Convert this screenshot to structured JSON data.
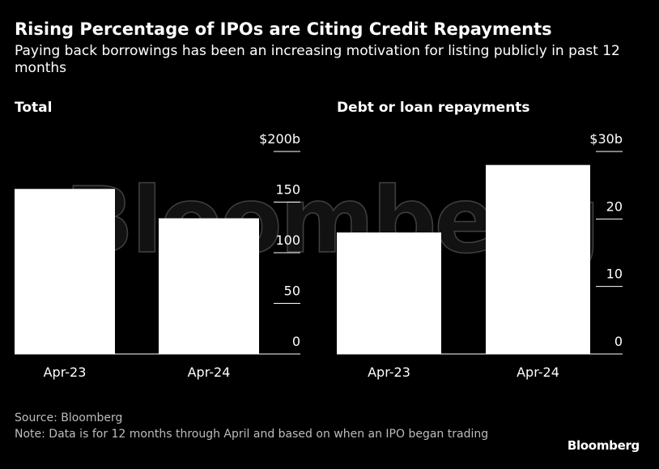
{
  "title": "Rising Percentage of IPOs are Citing Credit Repayments",
  "subtitle": "Paying back borrowings has been an increasing motivation for listing publicly in past 12 months",
  "watermark": "Bloomberg",
  "source": "Source: Bloomberg",
  "note": "Note: Data is for 12 months through April and based on when an IPO began trading",
  "logo": "Bloomberg",
  "colors": {
    "background": "#000000",
    "bar": "#ffffff",
    "text": "#ffffff",
    "muted": "#bdbdbd"
  },
  "chart_data": [
    {
      "type": "bar",
      "title": "Total",
      "categories": [
        "Apr-23",
        "Apr-24"
      ],
      "values": [
        163,
        134
      ],
      "ylim": [
        0,
        200
      ],
      "yticks": [
        0,
        50,
        100,
        150,
        200
      ],
      "ytick_labels": [
        "0",
        "50",
        "100",
        "150",
        "$200b"
      ],
      "grid": false,
      "axis_side": "right"
    },
    {
      "type": "bar",
      "title": "Debt or loan repayments",
      "categories": [
        "Apr-23",
        "Apr-24"
      ],
      "values": [
        18,
        28
      ],
      "ylim": [
        0,
        30
      ],
      "yticks": [
        0,
        10,
        20,
        30
      ],
      "ytick_labels": [
        "0",
        "10",
        "20",
        "$30b"
      ],
      "grid": false,
      "axis_side": "right"
    }
  ]
}
